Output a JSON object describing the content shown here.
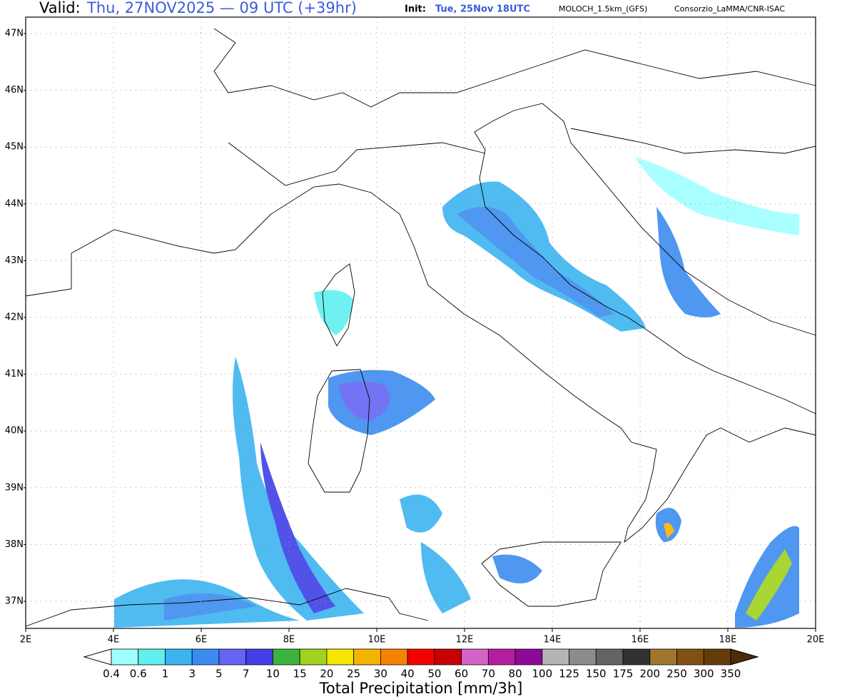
{
  "header": {
    "valid_label": "Valid:",
    "valid_time": "Thu, 27NOV2025 — 09 UTC (+39hr)",
    "init_label": "Init:",
    "init_time": "Tue, 25Nov 18UTC",
    "model": "MOLOCH_1.5km_(GFS)",
    "source": "Consorzio_LaMMA/CNR-ISAC"
  },
  "map": {
    "lon_labels": [
      "2E",
      "4E",
      "6E",
      "8E",
      "10E",
      "12E",
      "14E",
      "16E",
      "18E",
      "20E"
    ],
    "lat_labels": [
      "47N",
      "46N",
      "45N",
      "44N",
      "43N",
      "42N",
      "41N",
      "40N",
      "39N",
      "38N",
      "37N"
    ]
  },
  "colorbar": {
    "title": "Total Precipitation [mm/3h]",
    "labels": [
      "0.4",
      "0.6",
      "1",
      "3",
      "5",
      "7",
      "10",
      "15",
      "20",
      "25",
      "30",
      "40",
      "50",
      "60",
      "70",
      "80",
      "100",
      "125",
      "150",
      "175",
      "200",
      "250",
      "300",
      "350"
    ],
    "under_color": "#ffffff",
    "over_color": "#4a2c08",
    "colors": [
      "#a0ffff",
      "#60f0f0",
      "#3cb4f0",
      "#3c8cf0",
      "#6464f5",
      "#4040e6",
      "#3cb43c",
      "#a0d21e",
      "#f5e600",
      "#f5b400",
      "#f58200",
      "#f50000",
      "#c80000",
      "#d264c8",
      "#b41ea0",
      "#8c0a96",
      "#b4b4b4",
      "#8c8c8c",
      "#646464",
      "#323232",
      "#a0782d",
      "#825014",
      "#643c0a"
    ]
  }
}
